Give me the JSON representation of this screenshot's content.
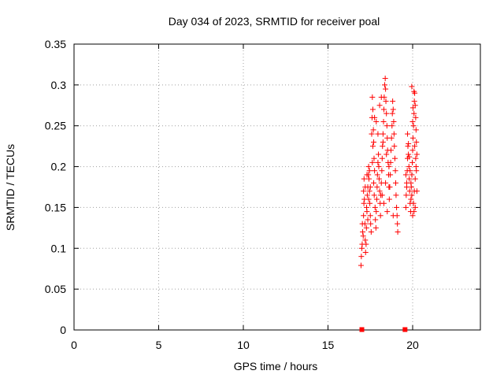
{
  "chart_data": {
    "type": "scatter",
    "title": "Day 034 of 2023, SRMTID for receiver poal",
    "xlabel": "GPS time / hours",
    "ylabel": "SRMTID / TECUs",
    "xlim": [
      0,
      24
    ],
    "ylim": [
      0,
      0.35
    ],
    "x_ticks": [
      0,
      5,
      10,
      15,
      20
    ],
    "x_tick_labels": [
      "0",
      "5",
      "10",
      "15",
      "20"
    ],
    "y_ticks": [
      0,
      0.05,
      0.1,
      0.15,
      0.2,
      0.25,
      0.3,
      0.35
    ],
    "y_tick_labels": [
      "0",
      "0.05",
      "0.1",
      "0.15",
      "0.2",
      "0.25",
      "0.3",
      "0.35"
    ],
    "grid": true,
    "marker_color": "#ff0000",
    "series": [
      {
        "marker": "plus",
        "points": [
          [
            16.95,
            0.079
          ],
          [
            16.97,
            0.09
          ],
          [
            17.0,
            0.1
          ],
          [
            17.02,
            0.105
          ],
          [
            17.05,
            0.12
          ],
          [
            17.03,
            0.13
          ],
          [
            17.08,
            0.115
          ],
          [
            17.1,
            0.14
          ],
          [
            17.12,
            0.155
          ],
          [
            17.1,
            0.17
          ],
          [
            17.13,
            0.185
          ],
          [
            17.15,
            0.16
          ],
          [
            17.18,
            0.13
          ],
          [
            17.2,
            0.11
          ],
          [
            17.22,
            0.095
          ],
          [
            17.25,
            0.105
          ],
          [
            17.27,
            0.125
          ],
          [
            17.3,
            0.145
          ],
          [
            17.32,
            0.165
          ],
          [
            17.35,
            0.175
          ],
          [
            17.38,
            0.19
          ],
          [
            17.4,
            0.2
          ],
          [
            17.42,
            0.185
          ],
          [
            17.45,
            0.17
          ],
          [
            17.47,
            0.155
          ],
          [
            17.5,
            0.14
          ],
          [
            17.52,
            0.13
          ],
          [
            17.55,
            0.12
          ],
          [
            17.35,
            0.135
          ],
          [
            17.28,
            0.15
          ],
          [
            17.6,
            0.26
          ],
          [
            17.62,
            0.285
          ],
          [
            17.65,
            0.27
          ],
          [
            17.68,
            0.245
          ],
          [
            17.7,
            0.23
          ],
          [
            17.72,
            0.21
          ],
          [
            17.75,
            0.195
          ],
          [
            17.65,
            0.225
          ],
          [
            17.58,
            0.24
          ],
          [
            17.62,
            0.205
          ],
          [
            17.7,
            0.18
          ],
          [
            17.73,
            0.165
          ],
          [
            17.78,
            0.15
          ],
          [
            17.8,
            0.135
          ],
          [
            17.83,
            0.125
          ],
          [
            17.85,
            0.145
          ],
          [
            17.88,
            0.16
          ],
          [
            17.9,
            0.175
          ],
          [
            17.92,
            0.19
          ],
          [
            17.95,
            0.205
          ],
          [
            17.98,
            0.215
          ],
          [
            18.0,
            0.2
          ],
          [
            18.02,
            0.185
          ],
          [
            18.05,
            0.17
          ],
          [
            18.08,
            0.155
          ],
          [
            18.1,
            0.14
          ],
          [
            18.12,
            0.165
          ],
          [
            18.15,
            0.18
          ],
          [
            18.18,
            0.195
          ],
          [
            18.2,
            0.21
          ],
          [
            18.22,
            0.225
          ],
          [
            18.25,
            0.24
          ],
          [
            18.28,
            0.255
          ],
          [
            18.3,
            0.27
          ],
          [
            18.32,
            0.285
          ],
          [
            18.35,
            0.3
          ],
          [
            18.38,
            0.308
          ],
          [
            18.4,
            0.295
          ],
          [
            18.42,
            0.28
          ],
          [
            18.45,
            0.265
          ],
          [
            18.48,
            0.25
          ],
          [
            18.5,
            0.235
          ],
          [
            18.52,
            0.22
          ],
          [
            18.55,
            0.205
          ],
          [
            18.58,
            0.19
          ],
          [
            18.6,
            0.175
          ],
          [
            18.62,
            0.16
          ],
          [
            18.65,
            0.175
          ],
          [
            18.68,
            0.19
          ],
          [
            18.7,
            0.205
          ],
          [
            18.72,
            0.22
          ],
          [
            18.75,
            0.235
          ],
          [
            18.78,
            0.25
          ],
          [
            18.8,
            0.265
          ],
          [
            18.82,
            0.28
          ],
          [
            18.85,
            0.27
          ],
          [
            18.88,
            0.255
          ],
          [
            18.9,
            0.24
          ],
          [
            18.92,
            0.225
          ],
          [
            18.95,
            0.21
          ],
          [
            18.98,
            0.195
          ],
          [
            19.0,
            0.18
          ],
          [
            19.02,
            0.165
          ],
          [
            19.05,
            0.15
          ],
          [
            19.08,
            0.14
          ],
          [
            19.1,
            0.13
          ],
          [
            19.12,
            0.12
          ],
          [
            18.85,
            0.14
          ],
          [
            18.5,
            0.145
          ],
          [
            18.3,
            0.155
          ],
          [
            18.2,
            0.165
          ],
          [
            18.4,
            0.18
          ],
          [
            18.6,
            0.2
          ],
          [
            18.45,
            0.215
          ],
          [
            18.25,
            0.23
          ],
          [
            17.95,
            0.24
          ],
          [
            17.85,
            0.255
          ],
          [
            17.75,
            0.26
          ],
          [
            18.05,
            0.275
          ],
          [
            18.15,
            0.285
          ],
          [
            17.5,
            0.175
          ],
          [
            17.45,
            0.195
          ],
          [
            17.4,
            0.16
          ],
          [
            17.3,
            0.19
          ],
          [
            17.2,
            0.175
          ],
          [
            19.6,
            0.15
          ],
          [
            19.62,
            0.165
          ],
          [
            19.65,
            0.18
          ],
          [
            19.68,
            0.195
          ],
          [
            19.7,
            0.21
          ],
          [
            19.72,
            0.225
          ],
          [
            19.75,
            0.215
          ],
          [
            19.78,
            0.2
          ],
          [
            19.8,
            0.185
          ],
          [
            19.82,
            0.17
          ],
          [
            19.85,
            0.155
          ],
          [
            19.88,
            0.145
          ],
          [
            19.9,
            0.16
          ],
          [
            19.92,
            0.175
          ],
          [
            19.95,
            0.19
          ],
          [
            19.98,
            0.205
          ],
          [
            20.0,
            0.22
          ],
          [
            20.02,
            0.235
          ],
          [
            20.05,
            0.25
          ],
          [
            20.08,
            0.265
          ],
          [
            20.1,
            0.28
          ],
          [
            20.12,
            0.29
          ],
          [
            20.15,
            0.275
          ],
          [
            20.18,
            0.26
          ],
          [
            20.2,
            0.245
          ],
          [
            20.22,
            0.23
          ],
          [
            20.25,
            0.215
          ],
          [
            20.2,
            0.2
          ],
          [
            20.15,
            0.185
          ],
          [
            20.1,
            0.17
          ],
          [
            20.05,
            0.155
          ],
          [
            20.0,
            0.14
          ],
          [
            19.95,
            0.165
          ],
          [
            19.9,
            0.18
          ],
          [
            19.85,
            0.195
          ],
          [
            19.8,
            0.212
          ],
          [
            19.75,
            0.228
          ],
          [
            19.7,
            0.24
          ],
          [
            19.65,
            0.175
          ],
          [
            19.6,
            0.19
          ],
          [
            20.0,
            0.255
          ],
          [
            20.02,
            0.272
          ],
          [
            20.08,
            0.292
          ],
          [
            19.95,
            0.298
          ],
          [
            20.12,
            0.225
          ],
          [
            20.18,
            0.21
          ],
          [
            20.22,
            0.195
          ],
          [
            20.25,
            0.17
          ],
          [
            20.15,
            0.15
          ],
          [
            20.08,
            0.145
          ]
        ]
      },
      {
        "marker": "square",
        "points": [
          [
            17.0,
            0.0
          ],
          [
            19.55,
            0.0
          ]
        ]
      }
    ]
  }
}
